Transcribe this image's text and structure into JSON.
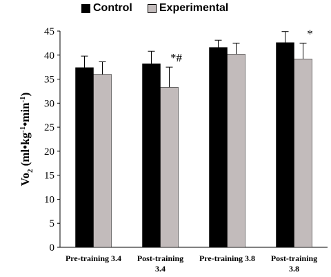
{
  "chart_data": {
    "type": "bar",
    "categories": [
      [
        "Pre-training 3.4"
      ],
      [
        "Post-training",
        "3.4"
      ],
      [
        "Pre-training 3.8"
      ],
      [
        "Post-training",
        "3.8"
      ]
    ],
    "series": [
      {
        "name": "Control",
        "color": "#000000",
        "values": [
          37.4,
          38.2,
          41.6,
          42.6
        ],
        "errors": [
          2.4,
          2.6,
          1.5,
          2.3
        ]
      },
      {
        "name": "Experimental",
        "color": "#c2bbbb",
        "values": [
          36.0,
          33.3,
          40.2,
          39.2
        ],
        "errors": [
          2.6,
          4.2,
          2.3,
          3.3
        ]
      }
    ],
    "annotations": [
      {
        "category_index": 1,
        "series_index": 1,
        "text": "*#"
      },
      {
        "category_index": 3,
        "series_index": 1,
        "text": "*"
      }
    ],
    "ylim": [
      0,
      45
    ],
    "yticks": [
      0,
      5,
      10,
      15,
      20,
      25,
      30,
      35,
      40,
      45
    ],
    "ylabel": {
      "main": "Vo",
      "sub": "2",
      "unit_parts": [
        " (ml•kg",
        "-1",
        "•min",
        "-1",
        ")"
      ]
    },
    "xlabel": "",
    "legend_position": "top",
    "grid": false
  }
}
